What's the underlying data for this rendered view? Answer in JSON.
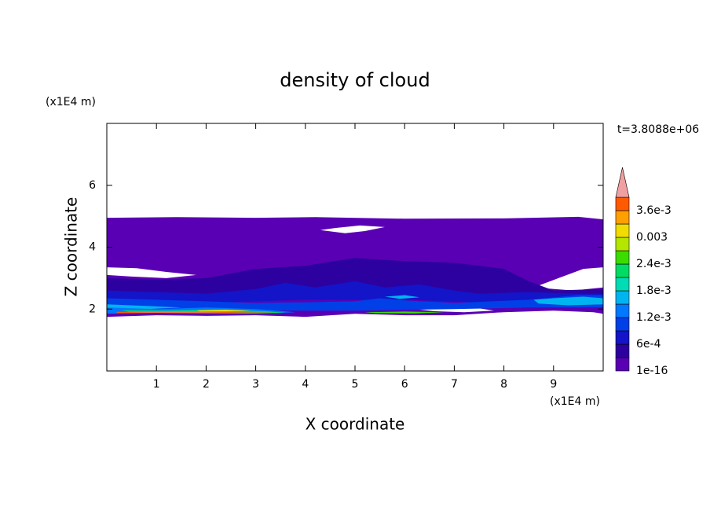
{
  "chart_data": {
    "type": "contour",
    "title": "density of cloud",
    "x_label": "X coordinate",
    "y_label": "Z coordinate",
    "x_unit": "(x1E4 m)",
    "y_unit": "(x1E4 m)",
    "annotation": "t=3.8088e+06",
    "xlim": [
      0,
      10
    ],
    "xticks": [
      1,
      2,
      3,
      4,
      5,
      6,
      7,
      8,
      9
    ],
    "ylim": [
      0,
      8
    ],
    "yticks": [
      2,
      4,
      6
    ],
    "colorbar": {
      "levels": [
        1e-16,
        0.0003,
        0.0006,
        0.0009,
        0.0012,
        0.0015,
        0.0018,
        0.0021,
        0.0024,
        0.0027,
        0.003,
        0.0033,
        0.0036,
        0.0039
      ],
      "labels": [
        "1e-16",
        null,
        "6e-4",
        null,
        "1.2e-3",
        null,
        "1.8e-3",
        null,
        "2.4e-3",
        null,
        "0.003",
        null,
        "3.6e-3",
        null
      ],
      "colors": [
        "#5a00b4",
        "#2d00a0",
        "#1414c8",
        "#0040e6",
        "#0078ff",
        "#00b4f0",
        "#00dcb4",
        "#00dc64",
        "#3cdc00",
        "#b4e600",
        "#f0dc00",
        "#ffa000",
        "#ff5a00",
        "#f0a0a0"
      ]
    }
  }
}
